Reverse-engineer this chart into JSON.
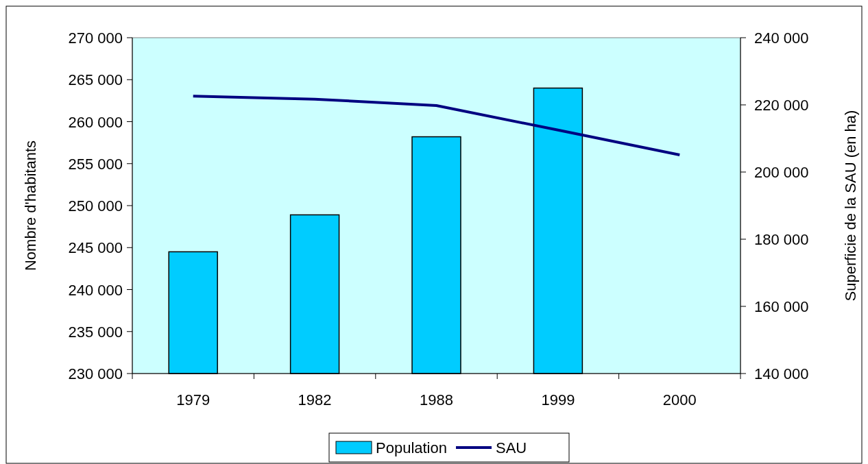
{
  "chart_data": {
    "type": "bar",
    "ylabel": "Nombre d'habitants",
    "y2label": "Superficie de la SAU (en ha)",
    "categories": [
      "1979",
      "1982",
      "1988",
      "1999",
      "2000"
    ],
    "series": [
      {
        "name": "Population",
        "color": "#00ccff",
        "values": [
          244500,
          248900,
          258200,
          264000,
          null
        ]
      },
      {
        "name": "SAU",
        "type": "line",
        "axis": "y2",
        "color": "#000080",
        "values": [
          222600,
          221700,
          219800,
          212500,
          205100
        ]
      }
    ],
    "ylim": [
      230000,
      270000
    ],
    "yticks": [
      {
        "value": 230000,
        "label": "230 000"
      },
      {
        "value": 235000,
        "label": "235 000"
      },
      {
        "value": 240000,
        "label": "240 000"
      },
      {
        "value": 245000,
        "label": "245 000"
      },
      {
        "value": 250000,
        "label": "250 000"
      },
      {
        "value": 255000,
        "label": "255 000"
      },
      {
        "value": 260000,
        "label": "260 000"
      },
      {
        "value": 265000,
        "label": "265 000"
      },
      {
        "value": 270000,
        "label": "270 000"
      }
    ],
    "y2lim": [
      140000,
      240000
    ],
    "y2ticks": [
      {
        "value": 140000,
        "label": "140 000"
      },
      {
        "value": 160000,
        "label": "160 000"
      },
      {
        "value": 180000,
        "label": "180 000"
      },
      {
        "value": 200000,
        "label": "200 000"
      },
      {
        "value": 220000,
        "label": "220 000"
      },
      {
        "value": 240000,
        "label": "240 000"
      }
    ],
    "grid": false,
    "legend": "bottom",
    "marker": "none",
    "line_style": "solid"
  }
}
